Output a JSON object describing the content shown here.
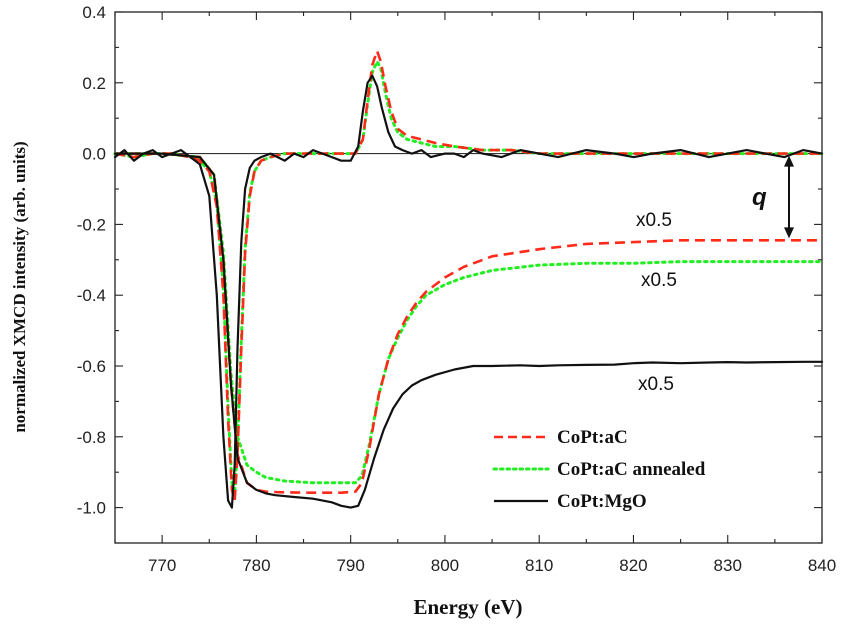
{
  "chart_data": {
    "type": "line",
    "title": "",
    "xlabel": "Energy (eV)",
    "ylabel": "normalized XMCD intensity (arb. units)",
    "xlim": [
      765,
      840
    ],
    "ylim": [
      -1.1,
      0.4
    ],
    "xticks": [
      770,
      780,
      790,
      800,
      810,
      820,
      830,
      840
    ],
    "xtick_labels": [
      "770",
      "780",
      "790",
      "800",
      "810",
      "820",
      "830",
      "840"
    ],
    "yticks": [
      0.4,
      0.2,
      0.0,
      -0.2,
      -0.4,
      -0.6,
      -0.8,
      -1.0
    ],
    "ytick_labels": [
      "0.4",
      "0.2",
      "0.0",
      "-0.2",
      "-0.4",
      "-0.6",
      "-0.8",
      "-1.0"
    ],
    "grid": false,
    "legend_position": "bottom-right",
    "colors": {
      "CoPt:aC": "#ff2a1a",
      "CoPt:aC annealed": "#22ee22",
      "CoPt:MgO": "#111111"
    },
    "annotations": {
      "scale_labels": [
        "x0.5",
        "x0.5",
        "x0.5"
      ],
      "q": "q"
    },
    "series": [
      {
        "name": "CoPt:aC",
        "group": "xmcd",
        "style": "dashed",
        "x": [
          765,
          767,
          769,
          771,
          773,
          774,
          775,
          775.8,
          776.5,
          777,
          777.4,
          777.7,
          778,
          778.4,
          778.8,
          779.3,
          779.8,
          780.5,
          781.5,
          783,
          786,
          789,
          790.5,
          791.3,
          791.8,
          792.3,
          792.8,
          793.2,
          793.7,
          794.3,
          795,
          796,
          797.5,
          799,
          801,
          804,
          807,
          810,
          815,
          820,
          825,
          830,
          835,
          840
        ],
        "y": [
          0.0,
          -0.01,
          0.0,
          0.0,
          -0.01,
          -0.02,
          -0.05,
          -0.15,
          -0.4,
          -0.75,
          -0.95,
          -0.98,
          -0.85,
          -0.55,
          -0.28,
          -0.12,
          -0.05,
          -0.02,
          -0.01,
          0.0,
          0.0,
          0.0,
          0.0,
          0.04,
          0.15,
          0.25,
          0.29,
          0.26,
          0.19,
          0.12,
          0.07,
          0.05,
          0.04,
          0.03,
          0.02,
          0.01,
          0.01,
          0.0,
          0.0,
          0.0,
          0.0,
          0.0,
          0.0,
          0.0
        ]
      },
      {
        "name": "CoPt:aC annealed",
        "group": "xmcd",
        "style": "dotted",
        "x": [
          765,
          767,
          769,
          771,
          773,
          774,
          775,
          775.8,
          776.5,
          777,
          777.4,
          777.7,
          778,
          778.4,
          778.8,
          779.3,
          779.8,
          780.5,
          781.5,
          783,
          786,
          789,
          790.5,
          791.3,
          791.8,
          792.3,
          792.8,
          793.2,
          793.7,
          794.3,
          795,
          796,
          797.5,
          799,
          801,
          804,
          807,
          810,
          815,
          820,
          825,
          830,
          835,
          840
        ],
        "y": [
          0.0,
          -0.01,
          0.0,
          0.0,
          -0.01,
          -0.02,
          -0.05,
          -0.14,
          -0.38,
          -0.72,
          -0.93,
          -0.96,
          -0.83,
          -0.53,
          -0.27,
          -0.11,
          -0.05,
          -0.02,
          -0.01,
          0.0,
          0.0,
          0.0,
          0.0,
          0.04,
          0.14,
          0.23,
          0.26,
          0.24,
          0.17,
          0.1,
          0.06,
          0.04,
          0.03,
          0.02,
          0.02,
          0.01,
          0.01,
          0.0,
          0.0,
          0.0,
          0.0,
          0.0,
          0.0,
          0.0
        ]
      },
      {
        "name": "CoPt:MgO",
        "group": "xmcd",
        "style": "solid",
        "x": [
          765,
          766,
          767,
          768,
          769,
          770,
          771,
          772,
          773,
          774,
          775,
          775.8,
          776.5,
          777,
          777.4,
          777.7,
          778,
          778.4,
          778.8,
          779.3,
          779.8,
          780.5,
          781.5,
          783,
          784,
          785,
          786,
          787,
          788,
          789,
          790,
          790.8,
          791.3,
          791.8,
          792.3,
          792.8,
          793.3,
          794,
          794.7,
          795.5,
          796.5,
          797.5,
          798.5,
          800,
          801,
          802,
          803,
          804,
          806,
          808,
          810,
          812,
          815,
          818,
          820,
          822,
          825,
          828,
          830,
          832,
          834,
          836,
          838,
          840
        ],
        "y": [
          -0.01,
          0.01,
          -0.02,
          0.0,
          0.01,
          -0.01,
          0.0,
          0.01,
          -0.01,
          -0.03,
          -0.12,
          -0.4,
          -0.8,
          -0.98,
          -1.0,
          -0.88,
          -0.55,
          -0.25,
          -0.1,
          -0.04,
          -0.02,
          -0.01,
          0.0,
          -0.02,
          0.0,
          -0.01,
          0.01,
          0.0,
          -0.01,
          -0.02,
          -0.02,
          0.02,
          0.12,
          0.2,
          0.22,
          0.19,
          0.13,
          0.06,
          0.02,
          0.01,
          0.0,
          0.01,
          -0.01,
          0.0,
          0.0,
          -0.01,
          0.01,
          0.0,
          -0.01,
          0.01,
          0.0,
          -0.01,
          0.01,
          0.0,
          -0.01,
          0.0,
          0.01,
          -0.01,
          0.0,
          0.01,
          0.0,
          -0.01,
          0.01,
          0.0
        ]
      },
      {
        "name": "CoPt:aC",
        "group": "integral",
        "style": "dashed",
        "x": [
          765,
          770,
          774,
          775.5,
          776.5,
          777.3,
          778,
          779,
          780,
          781,
          783,
          786,
          789,
          790.5,
          791.2,
          792,
          793,
          794,
          795,
          796,
          797,
          798,
          800,
          802,
          805,
          810,
          815,
          820,
          825,
          830,
          835,
          840
        ],
        "y": [
          0.0,
          0.0,
          -0.01,
          -0.06,
          -0.3,
          -0.65,
          -0.85,
          -0.93,
          -0.95,
          -0.955,
          -0.957,
          -0.958,
          -0.958,
          -0.955,
          -0.93,
          -0.83,
          -0.68,
          -0.58,
          -0.51,
          -0.46,
          -0.42,
          -0.39,
          -0.35,
          -0.32,
          -0.29,
          -0.27,
          -0.255,
          -0.25,
          -0.245,
          -0.245,
          -0.245,
          -0.245
        ]
      },
      {
        "name": "CoPt:aC annealed",
        "group": "integral",
        "style": "dotted",
        "x": [
          765,
          770,
          774,
          775.5,
          776.5,
          777.3,
          778,
          779,
          780,
          781,
          783,
          786,
          789,
          790.5,
          791.2,
          792,
          793,
          794,
          795,
          796,
          797,
          798,
          800,
          802,
          805,
          810,
          815,
          820,
          825,
          830,
          835,
          840
        ],
        "y": [
          0.0,
          0.0,
          -0.01,
          -0.06,
          -0.28,
          -0.62,
          -0.8,
          -0.88,
          -0.9,
          -0.915,
          -0.925,
          -0.93,
          -0.93,
          -0.93,
          -0.91,
          -0.82,
          -0.68,
          -0.58,
          -0.52,
          -0.47,
          -0.43,
          -0.4,
          -0.37,
          -0.35,
          -0.33,
          -0.315,
          -0.31,
          -0.31,
          -0.305,
          -0.305,
          -0.305,
          -0.305
        ]
      },
      {
        "name": "CoPt:MgO",
        "group": "integral",
        "style": "solid",
        "x": [
          765,
          770,
          774,
          775.5,
          776.5,
          777.3,
          778,
          779,
          780,
          781,
          782,
          784,
          786,
          788,
          789,
          790,
          790.8,
          791.5,
          792.5,
          793.5,
          794.5,
          795.5,
          796.5,
          797.5,
          799,
          801,
          803,
          805,
          808,
          810,
          812,
          815,
          818,
          820,
          822,
          825,
          828,
          830,
          832,
          835,
          838,
          840
        ],
        "y": [
          0.0,
          0.0,
          -0.01,
          -0.06,
          -0.3,
          -0.65,
          -0.86,
          -0.93,
          -0.95,
          -0.96,
          -0.965,
          -0.97,
          -0.975,
          -0.985,
          -0.995,
          -1.0,
          -0.995,
          -0.95,
          -0.86,
          -0.78,
          -0.72,
          -0.68,
          -0.655,
          -0.64,
          -0.625,
          -0.61,
          -0.6,
          -0.6,
          -0.598,
          -0.6,
          -0.598,
          -0.597,
          -0.596,
          -0.592,
          -0.59,
          -0.592,
          -0.59,
          -0.589,
          -0.59,
          -0.589,
          -0.588,
          -0.588
        ]
      }
    ]
  }
}
